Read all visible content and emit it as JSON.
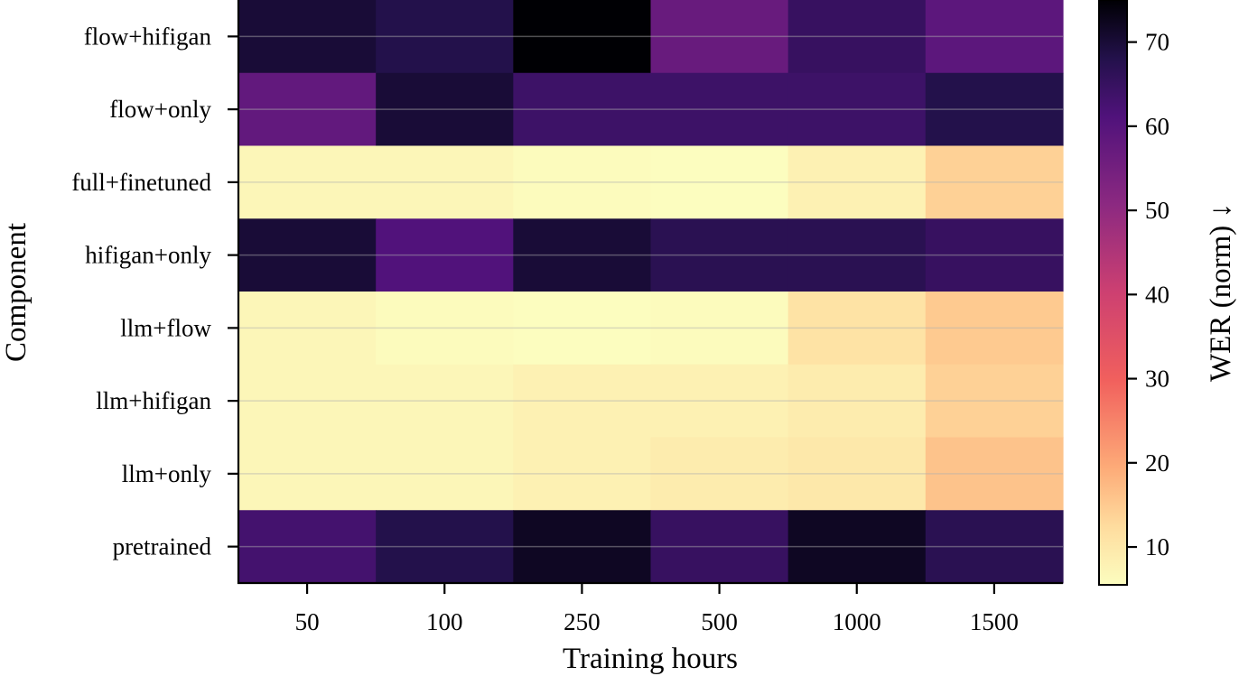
{
  "chart_data": {
    "type": "heatmap",
    "title": "",
    "xlabel": "Training hours",
    "ylabel": "Component",
    "x_categories": [
      "50",
      "100",
      "250",
      "500",
      "1000",
      "1500"
    ],
    "y_categories": [
      "flow+hifigan",
      "flow+only",
      "full+finetuned",
      "hifigan+only",
      "llm+flow",
      "llm+hifigan",
      "llm+only",
      "pretrained"
    ],
    "values": [
      [
        70,
        68,
        75,
        57,
        65,
        59
      ],
      [
        58,
        70,
        64,
        64,
        64,
        68
      ],
      [
        7,
        7,
        6,
        5,
        8,
        14
      ],
      [
        70,
        61,
        70,
        67,
        67,
        65
      ],
      [
        7,
        6,
        5,
        6,
        11,
        15
      ],
      [
        7,
        7,
        8,
        8,
        9,
        14
      ],
      [
        7,
        7,
        8,
        9,
        10,
        16
      ],
      [
        63,
        68,
        72,
        65,
        72,
        67
      ]
    ],
    "colorbar": {
      "label": "WER (norm) ↓",
      "ticks": [
        10,
        20,
        30,
        40,
        50,
        60,
        70
      ],
      "vmin": 5.5,
      "vmax": 75,
      "colormap": "magma_r"
    },
    "grid": true
  }
}
